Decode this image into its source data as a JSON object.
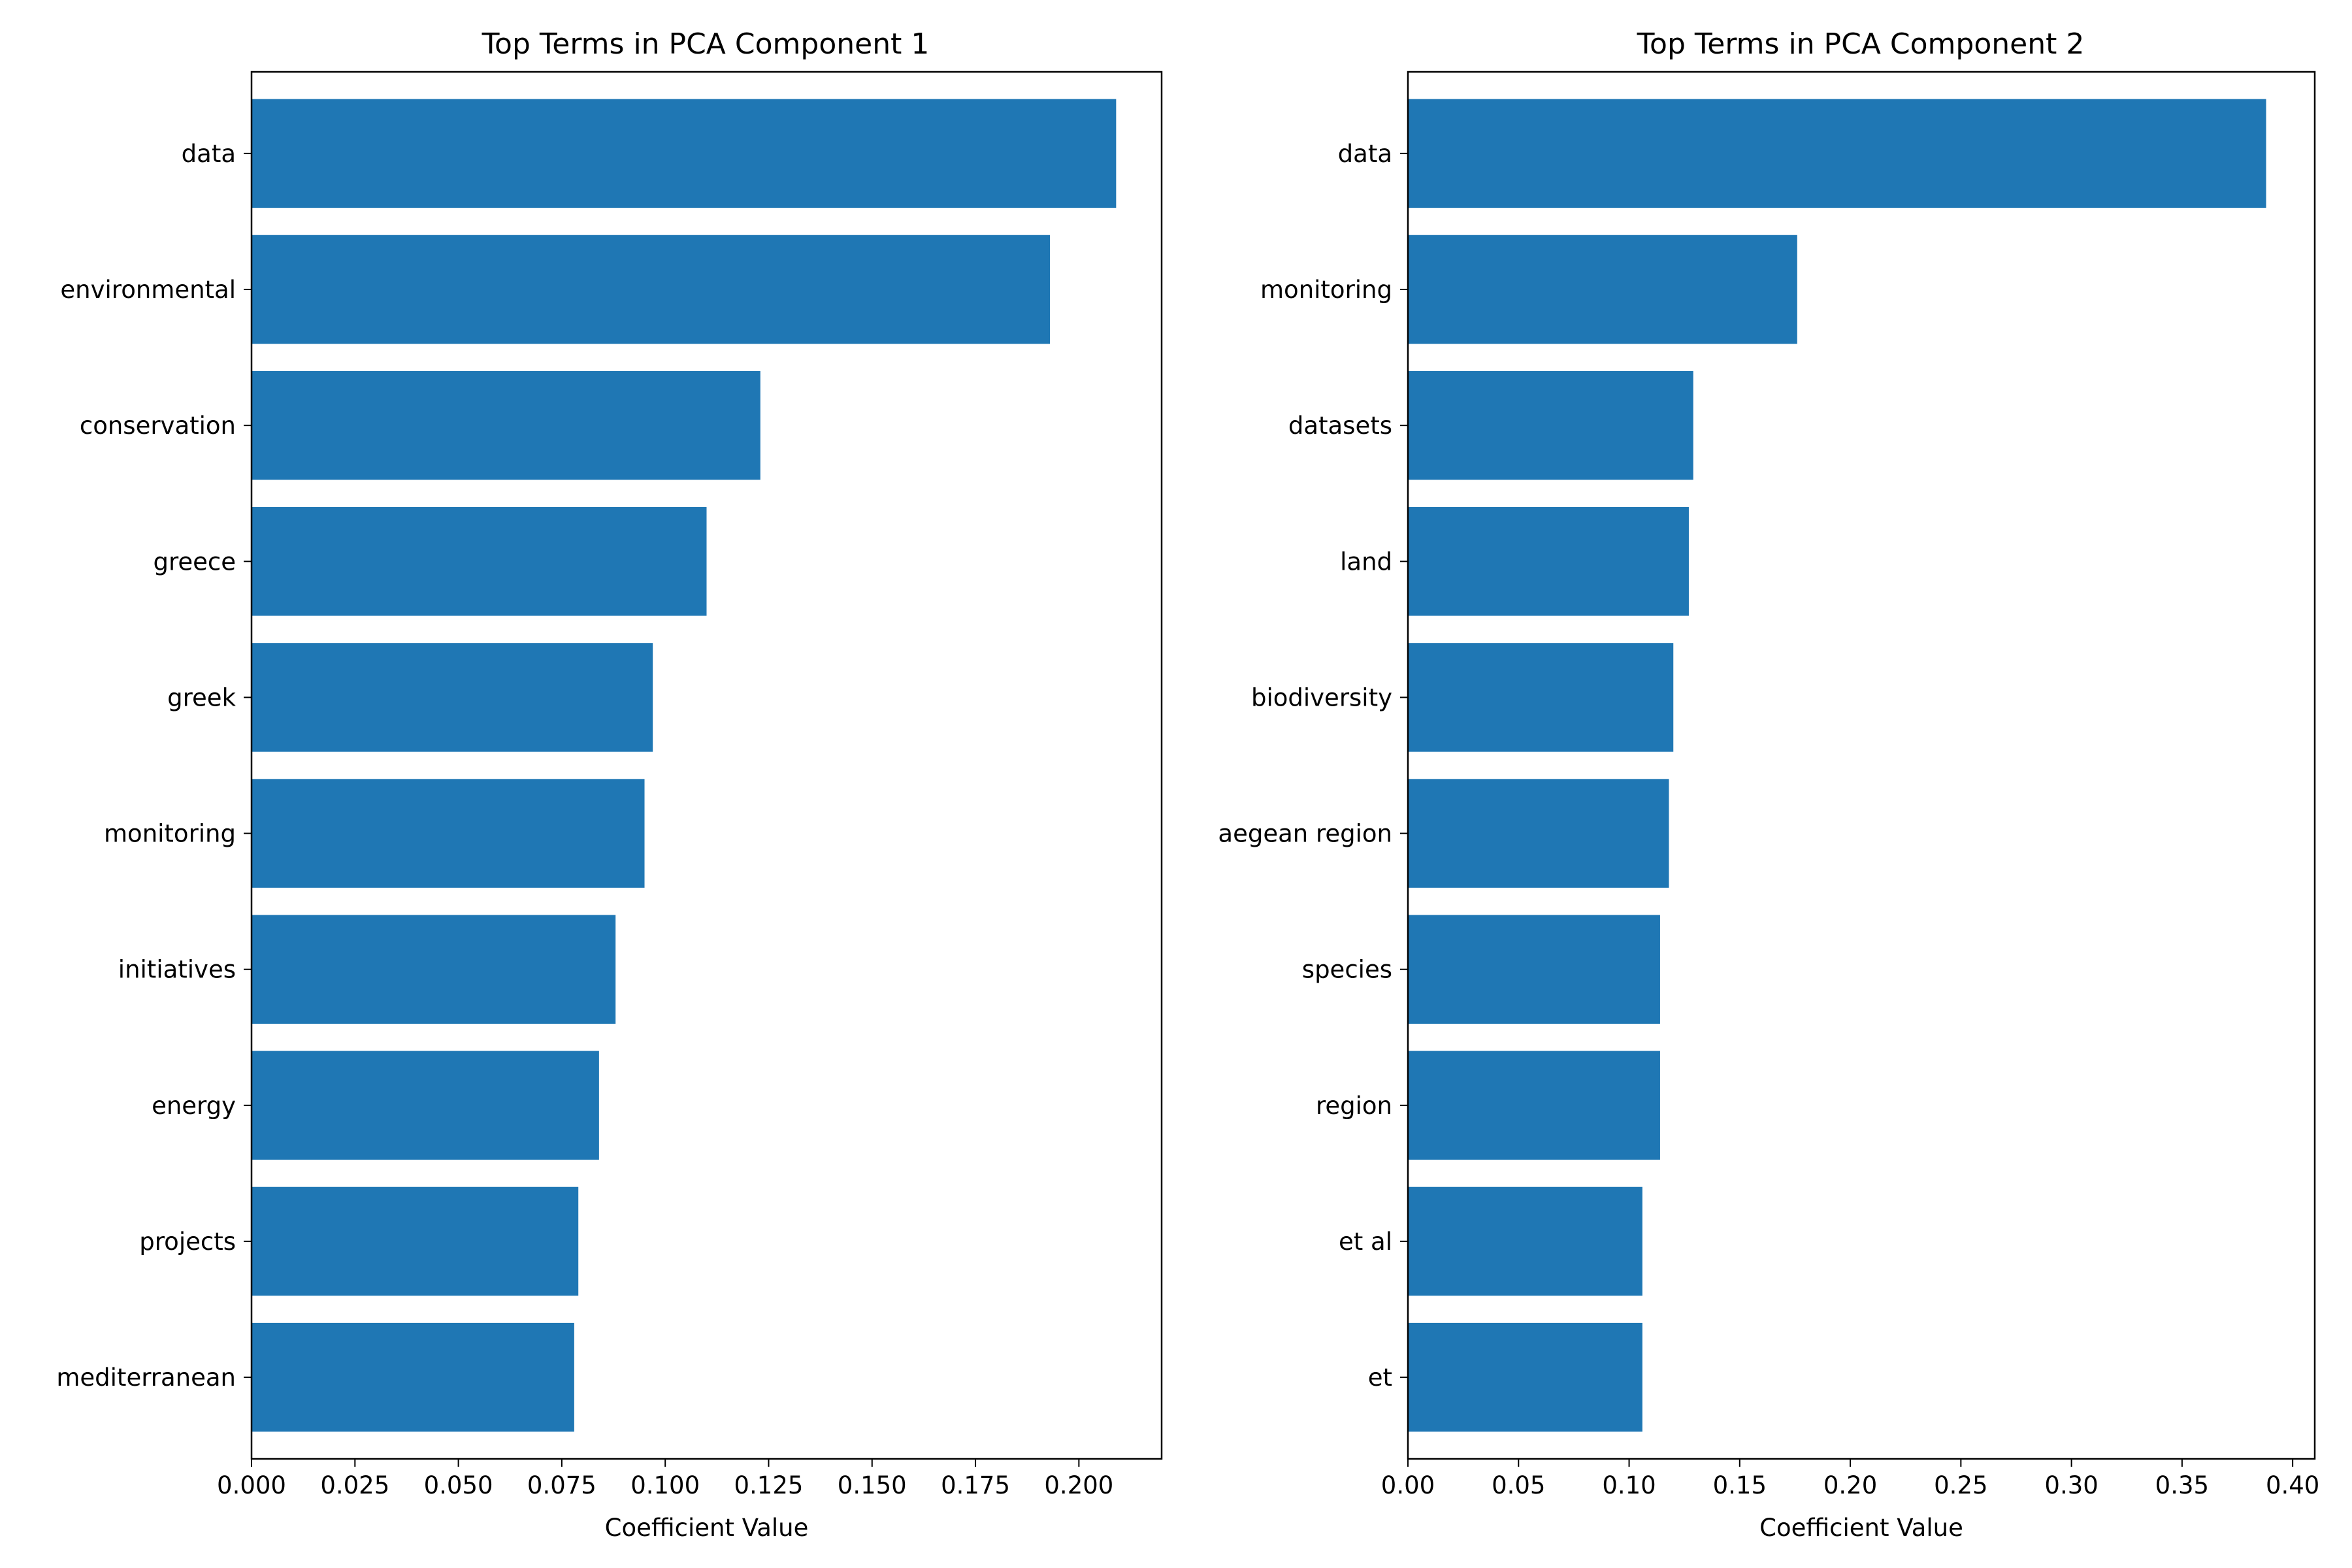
{
  "chart_data": [
    {
      "type": "bar",
      "orientation": "horizontal",
      "title": "Top Terms in PCA Component 1",
      "xlabel": "Coefficient Value",
      "ylabel": "",
      "categories": [
        "data",
        "environmental",
        "conservation",
        "greece",
        "greek",
        "monitoring",
        "initiatives",
        "energy",
        "projects",
        "mediterranean"
      ],
      "values": [
        0.209,
        0.193,
        0.123,
        0.11,
        0.097,
        0.095,
        0.088,
        0.084,
        0.079,
        0.078
      ],
      "xlim": [
        0,
        0.22
      ],
      "xticks": [
        "0.000",
        "0.025",
        "0.050",
        "0.075",
        "0.100",
        "0.125",
        "0.150",
        "0.175",
        "0.200"
      ],
      "grid": false,
      "bar_color": "#1f77b4"
    },
    {
      "type": "bar",
      "orientation": "horizontal",
      "title": "Top Terms in PCA Component 2",
      "xlabel": "Coefficient Value",
      "ylabel": "",
      "categories": [
        "data",
        "monitoring",
        "datasets",
        "land",
        "biodiversity",
        "aegean region",
        "species",
        "region",
        "et al",
        "et"
      ],
      "values": [
        0.388,
        0.176,
        0.129,
        0.127,
        0.12,
        0.118,
        0.114,
        0.114,
        0.106,
        0.106
      ],
      "xlim": [
        0,
        0.41
      ],
      "xticks": [
        "0.00",
        "0.05",
        "0.10",
        "0.15",
        "0.20",
        "0.25",
        "0.30",
        "0.35",
        "0.40"
      ],
      "grid": false,
      "bar_color": "#1f77b4"
    }
  ]
}
